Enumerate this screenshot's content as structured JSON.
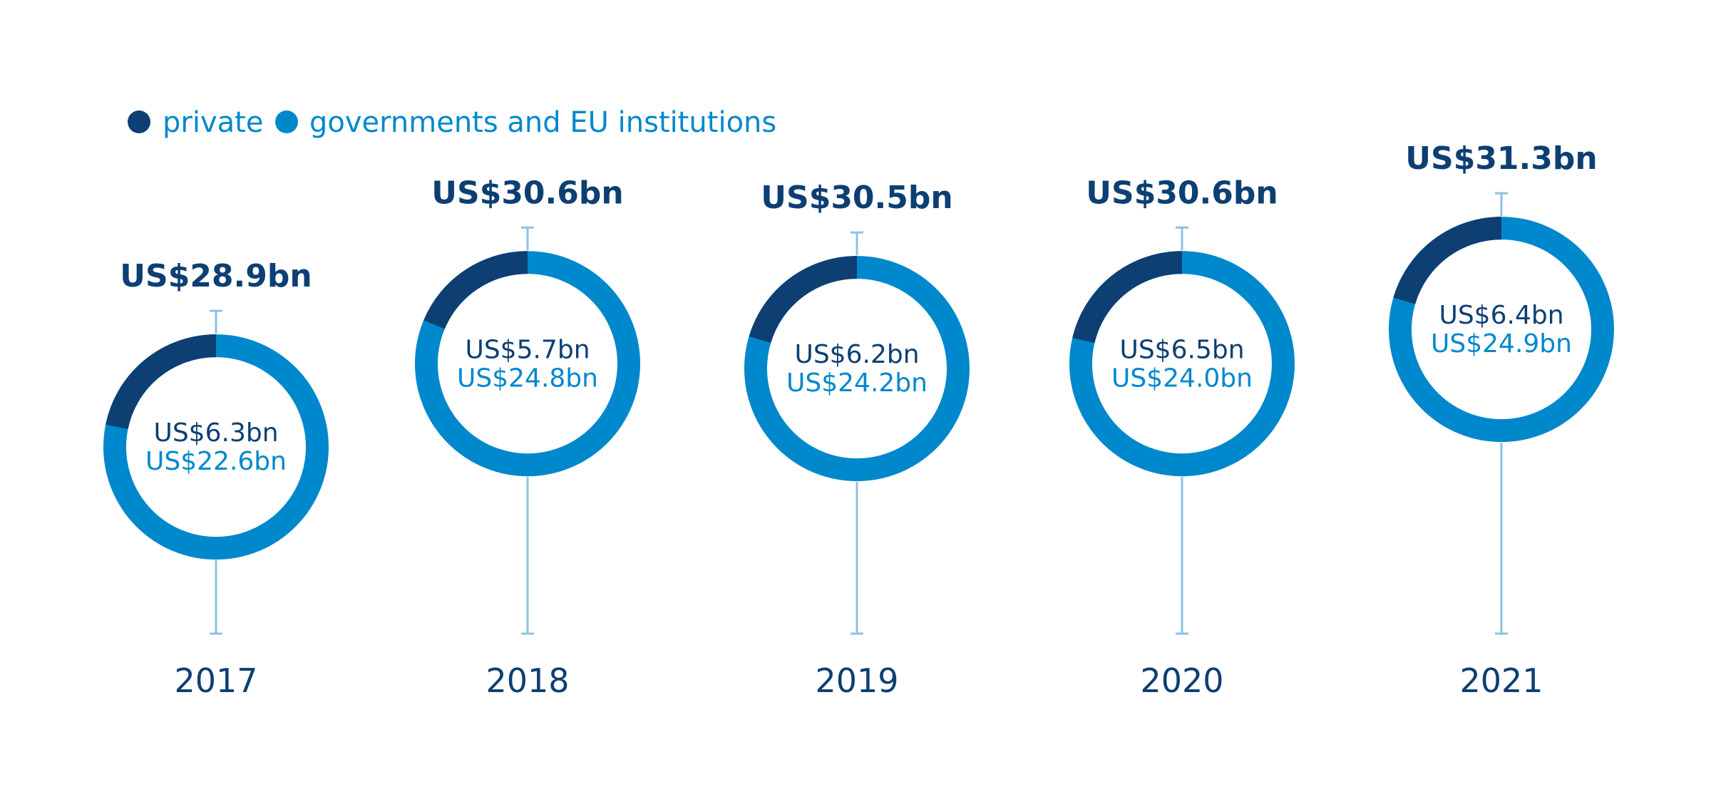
{
  "colors": {
    "private": "#0d3f73",
    "government": "#0088cc",
    "stem": "#8cc2e6",
    "year_text": "#0d3f73"
  },
  "legend": {
    "private": "private",
    "government": "governments and EU institutions"
  },
  "chart_data": {
    "type": "pie",
    "variant": "donut-timeline",
    "title": "",
    "unit": "US$ billion",
    "legend_position": "top-left",
    "categories": [
      "2017",
      "2018",
      "2019",
      "2020",
      "2021"
    ],
    "series": [
      {
        "name": "private",
        "values": [
          6.3,
          5.7,
          6.2,
          6.5,
          6.4
        ],
        "labels": [
          "US$6.3bn",
          "US$5.7bn",
          "US$6.2bn",
          "US$6.5bn",
          "US$6.4bn"
        ]
      },
      {
        "name": "governments and EU institutions",
        "values": [
          22.6,
          24.8,
          24.2,
          24.0,
          24.9
        ],
        "labels": [
          "US$22.6bn",
          "US$24.8bn",
          "US$24.2bn",
          "US$24.0bn",
          "US$24.9bn"
        ]
      }
    ],
    "totals": [
      28.9,
      30.6,
      30.5,
      30.6,
      31.3
    ],
    "total_labels": [
      "US$28.9bn",
      "US$30.6bn",
      "US$30.5bn",
      "US$30.6bn",
      "US$31.3bn"
    ],
    "total_range": [
      28,
      32
    ]
  }
}
